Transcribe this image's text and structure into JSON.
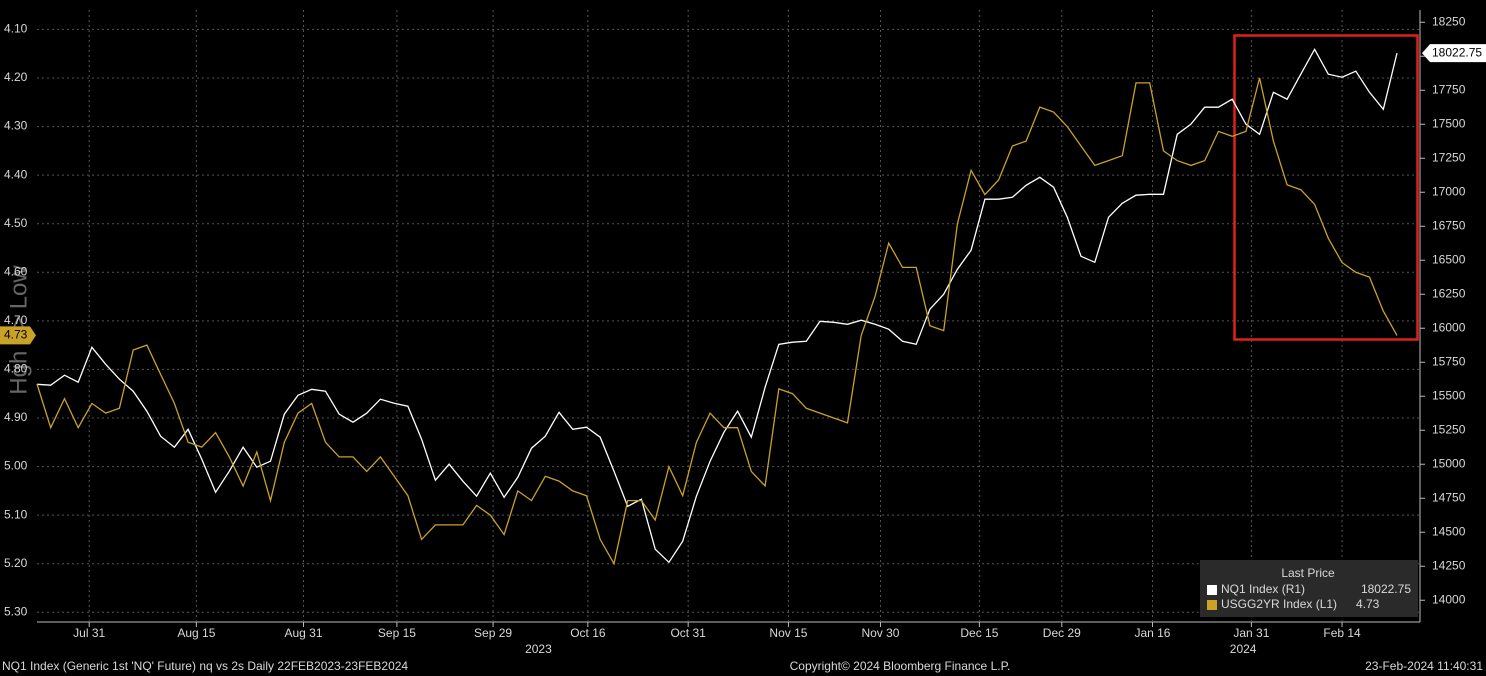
{
  "chart_data": {
    "type": "line",
    "y_label": "Hgh <> Low",
    "legend_title": "Last Price",
    "footer_left": "NQ1 Index (Generic 1st 'NQ' Future) nq vs 2s  Daily 22FEB2023-23FEB2024",
    "footer_center": "Copyright© 2024 Bloomberg Finance L.P.",
    "footer_right": "23-Feb-2024 11:40:31",
    "year_labels": [
      {
        "value": 36.5,
        "label": "2023"
      },
      {
        "value": 87.8,
        "label": "2024"
      }
    ],
    "xlim": [
      0,
      99
    ],
    "xticks": [
      {
        "value": 3.8,
        "label": "Jul 31"
      },
      {
        "value": 11.6,
        "label": "Aug 15"
      },
      {
        "value": 19.4,
        "label": "Aug 31"
      },
      {
        "value": 26.2,
        "label": "Sep 15"
      },
      {
        "value": 33.2,
        "label": "Sep 29"
      },
      {
        "value": 40.1,
        "label": "Oct 16"
      },
      {
        "value": 47.4,
        "label": "Oct 31"
      },
      {
        "value": 54.7,
        "label": "Nov 15"
      },
      {
        "value": 61.4,
        "label": "Nov 30"
      },
      {
        "value": 68.6,
        "label": "Dec 15"
      },
      {
        "value": 74.6,
        "label": "Dec 29"
      },
      {
        "value": 81.2,
        "label": "Jan 16"
      },
      {
        "value": 88.4,
        "label": "Jan 31"
      },
      {
        "value": 95,
        "label": "Feb 14"
      }
    ],
    "ylim": [
      4.06,
      5.32
    ],
    "y_inverted": true,
    "yticks": [
      {
        "value": 4.1,
        "label": "4.10"
      },
      {
        "value": 4.2,
        "label": "4.20"
      },
      {
        "value": 4.3,
        "label": "4.30"
      },
      {
        "value": 4.4,
        "label": "4.40"
      },
      {
        "value": 4.5,
        "label": "4.50"
      },
      {
        "value": 4.6,
        "label": "4.60"
      },
      {
        "value": 4.7,
        "label": "4.70"
      },
      {
        "value": 4.8,
        "label": "4.80"
      },
      {
        "value": 4.9,
        "label": "4.90"
      },
      {
        "value": 5.0,
        "label": "5.00"
      },
      {
        "value": 5.1,
        "label": "5.10"
      },
      {
        "value": 5.2,
        "label": "5.20"
      },
      {
        "value": 5.3,
        "label": "5.30"
      }
    ],
    "y2lim": [
      13840,
      18340
    ],
    "y2ticks": [
      14000,
      14250,
      14500,
      14750,
      15000,
      15250,
      15500,
      15750,
      16000,
      16250,
      16500,
      16750,
      17000,
      17250,
      17500,
      17750,
      18000,
      18250
    ],
    "grid": true,
    "series": [
      {
        "name": "NQ1 Index (R1)",
        "color": "#ffffff",
        "axis": "y2",
        "values": [
          15588,
          15581,
          15655,
          15603,
          15860,
          15735,
          15625,
          15537,
          15390,
          15206,
          15125,
          15257,
          15037,
          14794,
          14949,
          15125,
          14978,
          15022,
          15368,
          15507,
          15551,
          15537,
          15368,
          15309,
          15375,
          15478,
          15449,
          15427,
          15184,
          14883,
          15000,
          14875,
          14765,
          14934,
          14757,
          14904,
          15118,
          15206,
          15382,
          15257,
          15272,
          15199,
          14949,
          14691,
          14743,
          14375,
          14279,
          14434,
          14765,
          15022,
          15235,
          15390,
          15199,
          15566,
          15882,
          15897,
          15904,
          16051,
          16044,
          16029,
          16059,
          16029,
          15993,
          15904,
          15882,
          16140,
          16250,
          16434,
          16574,
          16949,
          16949,
          16963,
          17051,
          17110,
          17037,
          16816,
          16529,
          16485,
          16816,
          16919,
          16978,
          16985,
          16985,
          17426,
          17500,
          17625,
          17625,
          17684,
          17500,
          17426,
          17735,
          17684,
          17868,
          18051,
          17868,
          17846,
          17890,
          17735,
          17610,
          18022.75
        ]
      },
      {
        "name": "USGG2YR Index (L1)",
        "color": "#c9a227",
        "axis": "y",
        "values": [
          4.83,
          4.92,
          4.86,
          4.92,
          4.87,
          4.89,
          4.88,
          4.76,
          4.75,
          4.81,
          4.87,
          4.95,
          4.96,
          4.93,
          4.98,
          5.04,
          4.97,
          5.07,
          4.95,
          4.89,
          4.87,
          4.95,
          4.98,
          4.98,
          5.01,
          4.98,
          5.02,
          5.06,
          5.15,
          5.12,
          5.12,
          5.12,
          5.08,
          5.1,
          5.14,
          5.05,
          5.07,
          5.02,
          5.03,
          5.05,
          5.06,
          5.15,
          5.2,
          5.07,
          5.07,
          5.11,
          5.0,
          5.06,
          4.95,
          4.89,
          4.92,
          4.92,
          5.01,
          5.04,
          4.84,
          4.85,
          4.88,
          4.89,
          4.9,
          4.91,
          4.73,
          4.65,
          4.54,
          4.59,
          4.59,
          4.71,
          4.72,
          4.5,
          4.39,
          4.44,
          4.41,
          4.34,
          4.33,
          4.26,
          4.27,
          4.3,
          4.34,
          4.38,
          4.37,
          4.36,
          4.21,
          4.21,
          4.35,
          4.37,
          4.38,
          4.37,
          4.31,
          4.32,
          4.31,
          4.2,
          4.33,
          4.42,
          4.43,
          4.46,
          4.53,
          4.58,
          4.6,
          4.61,
          4.68,
          4.73
        ]
      }
    ]
  }
}
